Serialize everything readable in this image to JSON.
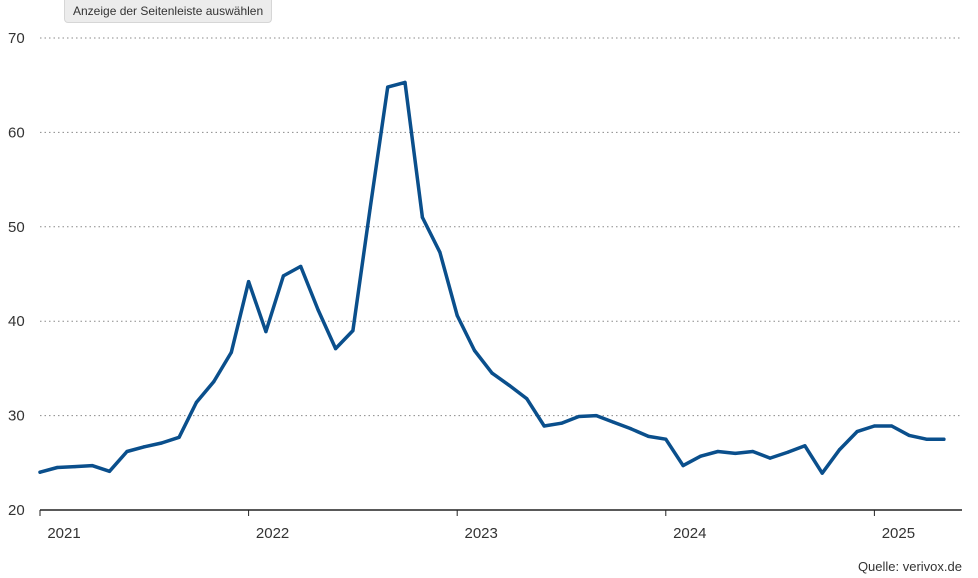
{
  "tooltip": {
    "label": "Anzeige der Seitenleiste auswählen"
  },
  "source": "Quelle: verivox.de",
  "colors": {
    "line": "#0a4f8c",
    "grid": "#8a8a8a",
    "axis": "#222222",
    "text": "#333333"
  },
  "chart_data": {
    "type": "line",
    "title": "",
    "xlabel": "",
    "ylabel": "",
    "ylim": [
      20,
      70
    ],
    "xlim": [
      2021.0,
      2025.42
    ],
    "yticks": [
      20,
      30,
      40,
      50,
      60,
      70
    ],
    "xticks": [
      "2021",
      "2022",
      "2023",
      "2024",
      "2025"
    ],
    "grid": "horizontal dotted",
    "legend": "none",
    "series": [
      {
        "x": [
          2021.0,
          2021.083,
          2021.167,
          2021.25,
          2021.333,
          2021.417,
          2021.5,
          2021.583,
          2021.667,
          2021.75,
          2021.833,
          2021.917,
          2022.0,
          2022.083,
          2022.167,
          2022.25,
          2022.333,
          2022.417,
          2022.5,
          2022.583,
          2022.667,
          2022.75,
          2022.833,
          2022.917,
          2023.0,
          2023.083,
          2023.167,
          2023.25,
          2023.333,
          2023.417,
          2023.5,
          2023.583,
          2023.667,
          2023.75,
          2023.833,
          2023.917,
          2024.0,
          2024.083,
          2024.167,
          2024.25,
          2024.333,
          2024.417,
          2024.5,
          2024.583,
          2024.667,
          2024.75,
          2024.833,
          2024.917,
          2025.0,
          2025.083,
          2025.167,
          2025.25,
          2025.333
        ],
        "values": [
          24.0,
          24.5,
          24.6,
          24.7,
          24.1,
          26.2,
          26.7,
          27.1,
          27.7,
          31.4,
          33.6,
          36.7,
          44.2,
          38.9,
          44.8,
          45.8,
          41.2,
          37.1,
          39.0,
          52.0,
          64.8,
          65.3,
          51.0,
          47.3,
          40.6,
          36.9,
          34.5,
          33.2,
          31.8,
          28.9,
          29.2,
          29.9,
          30.0,
          29.3,
          28.6,
          27.8,
          27.5,
          24.7,
          25.7,
          26.2,
          26.0,
          26.2,
          25.5,
          26.1,
          26.8,
          23.9,
          26.4,
          28.3,
          28.9,
          28.9,
          27.9,
          27.5,
          27.5
        ]
      }
    ]
  }
}
